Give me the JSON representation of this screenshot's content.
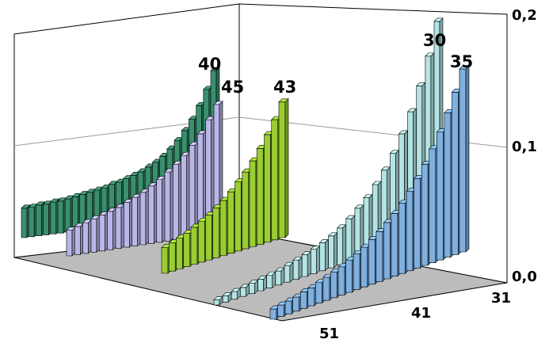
{
  "chart_data": {
    "type": "bar",
    "subtype": "3d-column",
    "title": "",
    "z_axis": {
      "ticks": [
        "0,0",
        "0,1",
        "0,2"
      ],
      "ylim": [
        0,
        0.2
      ]
    },
    "depth_axis_ticks": [
      "31",
      "41",
      "51"
    ],
    "series": [
      {
        "name": "40",
        "color": "#3a8f6e",
        "values": [
          0.023,
          0.023,
          0.024,
          0.024,
          0.025,
          0.025,
          0.026,
          0.027,
          0.028,
          0.029,
          0.03,
          0.031,
          0.033,
          0.034,
          0.036,
          0.038,
          0.04,
          0.043,
          0.046,
          0.05,
          0.055,
          0.061,
          0.068,
          0.076,
          0.086,
          0.098,
          0.112
        ]
      },
      {
        "name": "45",
        "color": "#b9b6e8",
        "values": [
          0.02,
          0.022,
          0.024,
          0.026,
          0.028,
          0.03,
          0.032,
          0.035,
          0.038,
          0.041,
          0.045,
          0.049,
          0.054,
          0.059,
          0.065,
          0.072,
          0.08,
          0.09,
          0.101
        ]
      },
      {
        "name": "43",
        "color": "#9acd32",
        "values": [
          0.02,
          0.022,
          0.024,
          0.026,
          0.029,
          0.032,
          0.035,
          0.039,
          0.043,
          0.048,
          0.054,
          0.06,
          0.067,
          0.075,
          0.084,
          0.094,
          0.106
        ]
      },
      {
        "name": "30",
        "color": "#b4e4e4",
        "values": [
          0.004,
          0.005,
          0.006,
          0.007,
          0.008,
          0.009,
          0.01,
          0.011,
          0.013,
          0.015,
          0.017,
          0.019,
          0.022,
          0.025,
          0.029,
          0.034,
          0.04,
          0.046,
          0.054,
          0.063,
          0.074,
          0.087,
          0.102,
          0.12,
          0.141,
          0.166
        ]
      },
      {
        "name": "35",
        "color": "#7fb0e0",
        "values": [
          0.008,
          0.009,
          0.01,
          0.011,
          0.013,
          0.014,
          0.016,
          0.018,
          0.02,
          0.022,
          0.025,
          0.028,
          0.031,
          0.035,
          0.039,
          0.044,
          0.049,
          0.055,
          0.062,
          0.07,
          0.079,
          0.089,
          0.1,
          0.113,
          0.127,
          0.143
        ]
      }
    ]
  }
}
